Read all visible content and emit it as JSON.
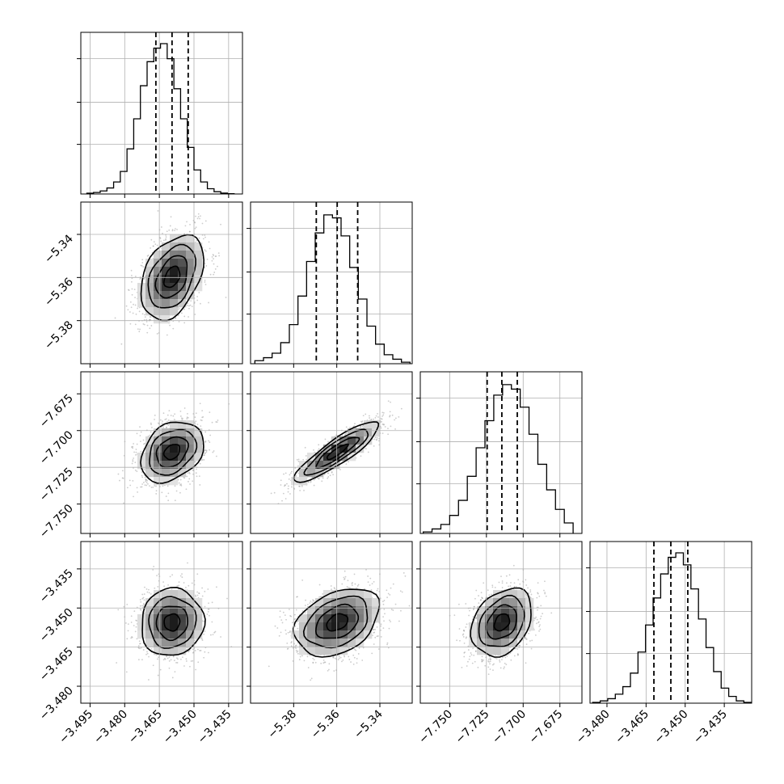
{
  "chart_data": {
    "type": "corner",
    "colors": {
      "hist": "#000000",
      "points": "#9a9a9a",
      "contour": "#000000",
      "grid": "#b0b0b0",
      "quantile": "#000000"
    },
    "params": [
      {
        "range": [
          -3.499,
          -3.429
        ],
        "ticks": [
          -3.495,
          -3.48,
          -3.465,
          -3.45,
          -3.435
        ],
        "tick_labels": [
          "−3.495",
          "−3.480",
          "−3.465",
          "−3.450",
          "−3.435"
        ]
      },
      {
        "range": [
          -5.4,
          -5.325
        ],
        "ticks": [
          -5.38,
          -5.36,
          -5.34
        ],
        "tick_labels": [
          "−5.38",
          "−5.36",
          "−5.34"
        ]
      },
      {
        "range": [
          -7.77,
          -7.66
        ],
        "ticks": [
          -7.75,
          -7.725,
          -7.7,
          -7.675
        ],
        "tick_labels": [
          "−7.750",
          "−7.725",
          "−7.700",
          "−7.675"
        ]
      },
      {
        "range": [
          -3.4865,
          -3.4245
        ],
        "ticks": [
          -3.48,
          -3.465,
          -3.45,
          -3.435
        ],
        "tick_labels": [
          "−3.480",
          "−3.465",
          "−3.450",
          "−3.435"
        ]
      }
    ],
    "histograms": [
      {
        "bins": [
          -3.4964,
          -3.4935,
          -3.4906,
          -3.4877,
          -3.4848,
          -3.4819,
          -3.479,
          -3.4761,
          -3.4732,
          -3.4703,
          -3.4674,
          -3.4645,
          -3.4616,
          -3.4587,
          -3.4558,
          -3.4529,
          -3.45,
          -3.4471,
          -3.4442,
          -3.4413,
          -3.4384,
          -3.4355,
          -3.4326
        ],
        "counts": [
          0.005,
          0.01,
          0.02,
          0.04,
          0.08,
          0.15,
          0.3,
          0.5,
          0.72,
          0.88,
          0.97,
          1.0,
          0.9,
          0.7,
          0.5,
          0.31,
          0.16,
          0.08,
          0.035,
          0.015,
          0.006,
          0.002
        ],
        "quantiles": [
          -3.4665,
          -3.4595,
          -3.4525
        ]
      },
      {
        "bins": [
          -5.398,
          -5.394,
          -5.39,
          -5.386,
          -5.382,
          -5.378,
          -5.374,
          -5.37,
          -5.366,
          -5.362,
          -5.358,
          -5.354,
          -5.35,
          -5.346,
          -5.342,
          -5.338,
          -5.334,
          -5.33,
          -5.326
        ],
        "counts": [
          0.02,
          0.04,
          0.07,
          0.14,
          0.26,
          0.45,
          0.68,
          0.87,
          0.99,
          0.97,
          0.85,
          0.64,
          0.43,
          0.25,
          0.13,
          0.06,
          0.03,
          0.01
        ],
        "quantiles": [
          -5.3695,
          -5.3598,
          -5.3503
        ]
      },
      {
        "bins": [
          -7.768,
          -7.762,
          -7.756,
          -7.75,
          -7.744,
          -7.738,
          -7.732,
          -7.726,
          -7.72,
          -7.714,
          -7.708,
          -7.702,
          -7.696,
          -7.69,
          -7.684,
          -7.678,
          -7.672,
          -7.666
        ],
        "counts": [
          0.01,
          0.03,
          0.06,
          0.12,
          0.22,
          0.38,
          0.57,
          0.75,
          0.92,
          0.99,
          0.96,
          0.84,
          0.66,
          0.46,
          0.29,
          0.16,
          0.07
        ],
        "quantiles": [
          -7.7245,
          -7.7145,
          -7.704
        ]
      },
      {
        "bins": [
          -3.4855,
          -3.4826,
          -3.4797,
          -3.4768,
          -3.4739,
          -3.471,
          -3.4681,
          -3.4652,
          -3.4623,
          -3.4594,
          -3.4565,
          -3.4536,
          -3.4507,
          -3.4478,
          -3.4449,
          -3.442,
          -3.4391,
          -3.4362,
          -3.4333,
          -3.4304,
          -3.4275,
          -3.4246
        ],
        "counts": [
          0.005,
          0.015,
          0.03,
          0.06,
          0.11,
          0.2,
          0.34,
          0.52,
          0.7,
          0.86,
          0.97,
          1.0,
          0.92,
          0.76,
          0.56,
          0.37,
          0.21,
          0.1,
          0.045,
          0.015,
          0.005
        ],
        "quantiles": [
          -3.462,
          -3.4555,
          -3.449
        ]
      }
    ],
    "pairs": [
      {
        "row": 1,
        "col": 0,
        "mean": [
          -3.4595,
          -5.3598
        ],
        "sd": [
          0.0068,
          0.0098
        ],
        "corr": 0.38
      },
      {
        "row": 2,
        "col": 0,
        "mean": [
          -3.4595,
          -7.7145
        ],
        "sd": [
          0.0068,
          0.0103
        ],
        "corr": 0.3
      },
      {
        "row": 2,
        "col": 1,
        "mean": [
          -5.3598,
          -7.7145
        ],
        "sd": [
          0.0098,
          0.0103
        ],
        "corr": 0.88
      },
      {
        "row": 3,
        "col": 0,
        "mean": [
          -3.4595,
          -3.4555
        ],
        "sd": [
          0.0068,
          0.0065
        ],
        "corr": 0.05
      },
      {
        "row": 3,
        "col": 1,
        "mean": [
          -5.3598,
          -3.4555
        ],
        "sd": [
          0.0098,
          0.0065
        ],
        "corr": 0.35
      },
      {
        "row": 3,
        "col": 2,
        "mean": [
          -7.7145,
          -3.4555
        ],
        "sd": [
          0.0103,
          0.0065
        ],
        "corr": 0.3
      }
    ]
  }
}
